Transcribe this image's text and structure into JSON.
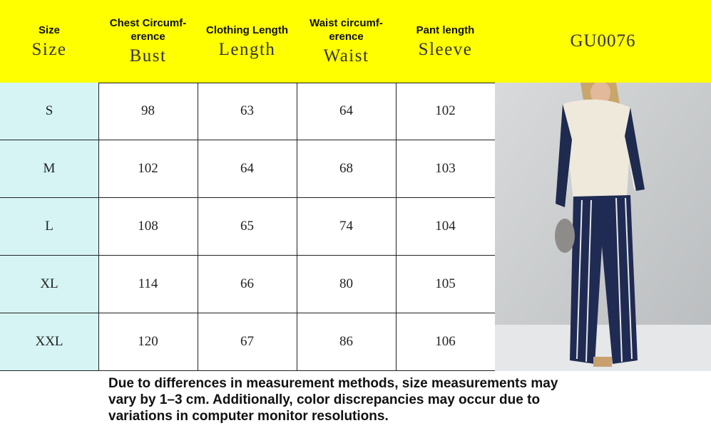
{
  "header": {
    "cells": [
      {
        "label": "Size",
        "sublabel": "Size"
      },
      {
        "label": "Chest Circumf-erence",
        "sublabel": "Bust"
      },
      {
        "label": "Clothing Length",
        "sublabel": "Length"
      },
      {
        "label": "Waist circumf-erence",
        "sublabel": "Waist"
      },
      {
        "label": "Pant length",
        "sublabel": "Sleeve"
      }
    ],
    "code": "GU0076"
  },
  "table": {
    "rows": [
      [
        "S",
        98,
        63,
        64,
        102
      ],
      [
        "M",
        102,
        64,
        68,
        103
      ],
      [
        "L",
        108,
        65,
        74,
        104
      ],
      [
        "XL",
        114,
        66,
        80,
        105
      ],
      [
        "XXL",
        120,
        67,
        86,
        106
      ]
    ]
  },
  "footer": {
    "lines": [
      "Due to differences in measurement methods, size measurements may",
      "vary by 1–3 cm. Additionally, color discrepancies may occur due to",
      "variations in computer monitor resolutions."
    ]
  }
}
